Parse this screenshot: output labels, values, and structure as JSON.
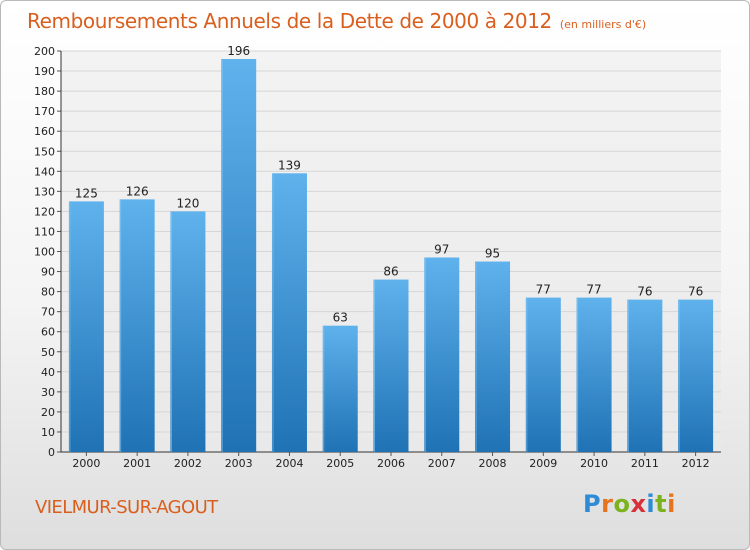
{
  "title": "Remboursements Annuels de la Dette de 2000 à 2012",
  "unit_note": "(en milliers d'€)",
  "town": "VIELMUR-SUR-AGOUT",
  "logo": {
    "text": "Proxiti",
    "letter_colors": [
      "#2e8bd8",
      "#e6731e",
      "#7bb21e",
      "#d8303a",
      "#2e8bd8",
      "#7bb21e",
      "#e6731e"
    ]
  },
  "colors": {
    "bar_top": "#5fb2ec",
    "bar_bottom": "#1f72b4",
    "accent_text": "#d95f1e",
    "grid": "#d6d6d6"
  },
  "chart_data": {
    "type": "bar",
    "title": "Remboursements Annuels de la Dette de 2000 à 2012",
    "categories": [
      "2000",
      "2001",
      "2002",
      "2003",
      "2004",
      "2005",
      "2006",
      "2007",
      "2008",
      "2009",
      "2010",
      "2011",
      "2012"
    ],
    "values": [
      125,
      126,
      120,
      196,
      139,
      63,
      86,
      97,
      95,
      77,
      77,
      76,
      76
    ],
    "ylim": [
      0,
      200
    ],
    "ytick_step": 10,
    "grid": true,
    "data_labels": true,
    "xlabel": "",
    "ylabel": ""
  }
}
